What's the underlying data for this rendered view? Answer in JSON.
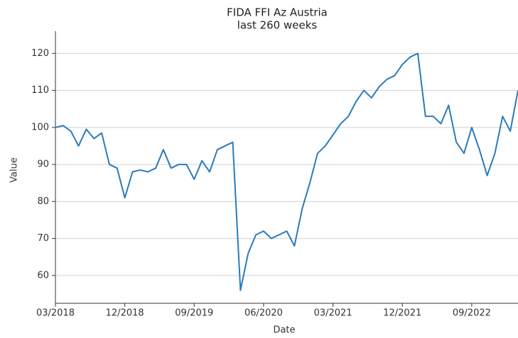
{
  "chart_data": {
    "type": "line",
    "title": "FIDA FFI Az Austria",
    "subtitle": "last 260 weeks",
    "x_label": "Date",
    "y_label": "Value",
    "x": [
      "2018-03",
      "2018-04",
      "2018-05",
      "2018-06",
      "2018-07",
      "2018-08",
      "2018-09",
      "2018-10",
      "2018-11",
      "2018-12",
      "2019-01",
      "2019-02",
      "2019-03",
      "2019-04",
      "2019-05",
      "2019-06",
      "2019-07",
      "2019-08",
      "2019-09",
      "2019-10",
      "2019-11",
      "2019-12",
      "2020-01",
      "2020-02",
      "2020-03",
      "2020-04",
      "2020-05",
      "2020-06",
      "2020-07",
      "2020-08",
      "2020-09",
      "2020-10",
      "2020-11",
      "2020-12",
      "2021-01",
      "2021-02",
      "2021-03",
      "2021-04",
      "2021-05",
      "2021-06",
      "2021-07",
      "2021-08",
      "2021-09",
      "2021-10",
      "2021-11",
      "2021-12",
      "2022-01",
      "2022-02",
      "2022-03",
      "2022-04",
      "2022-05",
      "2022-06",
      "2022-07",
      "2022-08",
      "2022-09",
      "2022-10",
      "2022-11",
      "2022-12",
      "2023-01",
      "2023-02",
      "2023-03"
    ],
    "series": [
      {
        "name": "FIDA FFI Az Austria",
        "color": "#2b7bba",
        "values": [
          100,
          100.5,
          99,
          95,
          99.5,
          97,
          98.5,
          90,
          89,
          81,
          88,
          88.5,
          88,
          89,
          94,
          89,
          90,
          90,
          86,
          91,
          88,
          94,
          95,
          96,
          56,
          66,
          71,
          72,
          70,
          71,
          72,
          68,
          78,
          85,
          93,
          95,
          98,
          101,
          103,
          107,
          110,
          108,
          111,
          113,
          114,
          117,
          119,
          120,
          103,
          103,
          101,
          106,
          96,
          93,
          100,
          94,
          87,
          93,
          103,
          99,
          110
        ]
      }
    ],
    "xlim": [
      "2018-03",
      "2023-03"
    ],
    "xticks": [
      {
        "value": "2018-03",
        "label": "03/2018"
      },
      {
        "value": "2018-12",
        "label": "12/2018"
      },
      {
        "value": "2019-09",
        "label": "09/2019"
      },
      {
        "value": "2020-06",
        "label": "06/2020"
      },
      {
        "value": "2021-03",
        "label": "03/2021"
      },
      {
        "value": "2021-12",
        "label": "12/2021"
      },
      {
        "value": "2022-09",
        "label": "09/2022"
      }
    ],
    "ylim": [
      52.5,
      126
    ],
    "yticks": [
      60,
      70,
      80,
      90,
      100,
      110,
      120
    ],
    "grid": true
  }
}
